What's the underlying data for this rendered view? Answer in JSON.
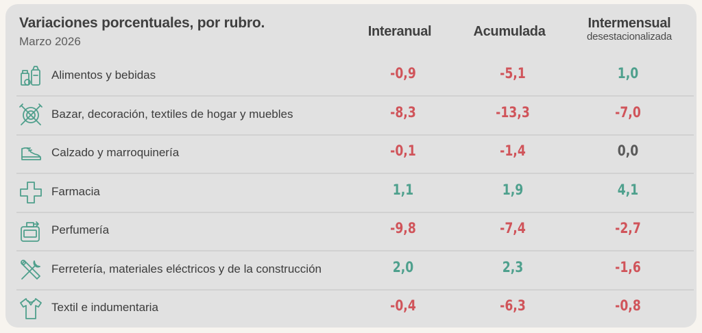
{
  "title": "Variaciones porcentuales, por rubro.",
  "subtitle": "Marzo 2026",
  "columns": {
    "interanual": "Interanual",
    "acumulada": "Acumulada",
    "intermensual": "Intermensual",
    "intermensual_sub": "desestacionalizada"
  },
  "colors": {
    "negative": "#d0545a",
    "positive": "#4ea08d",
    "zero": "#5a5a5a",
    "card": "#e1e1e1"
  },
  "rows": [
    {
      "label": "Alimentos y bebidas",
      "icon": "groceries-icon",
      "interanual": "-0,9",
      "acumulada": "-5,1",
      "intermensual": "1,0"
    },
    {
      "label": "Bazar, decoración, textiles de hogar y muebles",
      "icon": "plate-cutlery-icon",
      "interanual": "-8,3",
      "acumulada": "-13,3",
      "intermensual": "-7,0"
    },
    {
      "label": "Calzado y marroquinería",
      "icon": "sneaker-icon",
      "interanual": "-0,1",
      "acumulada": "-1,4",
      "intermensual": "0,0"
    },
    {
      "label": "Farmacia",
      "icon": "pharmacy-cross-icon",
      "interanual": "1,1",
      "acumulada": "1,9",
      "intermensual": "4,1"
    },
    {
      "label": "Perfumería",
      "icon": "perfume-bottle-icon",
      "interanual": "-9,8",
      "acumulada": "-7,4",
      "intermensual": "-2,7"
    },
    {
      "label": "Ferretería, materiales eléctricos y de la construcción",
      "icon": "tools-icon",
      "interanual": "2,0",
      "acumulada": "2,3",
      "intermensual": "-1,6"
    },
    {
      "label": "Textil e indumentaria",
      "icon": "shirt-icon",
      "interanual": "-0,4",
      "acumulada": "-6,3",
      "intermensual": "-0,8"
    }
  ],
  "chart_data": {
    "type": "table",
    "title": "Variaciones porcentuales, por rubro.",
    "subtitle": "Marzo 2026",
    "columns": [
      "Interanual",
      "Acumulada",
      "Intermensual desestacionalizada"
    ],
    "categories": [
      "Alimentos y bebidas",
      "Bazar, decoración, textiles de hogar y muebles",
      "Calzado y marroquinería",
      "Farmacia",
      "Perfumería",
      "Ferretería, materiales eléctricos y de la construcción",
      "Textil e indumentaria"
    ],
    "series": [
      {
        "name": "Interanual",
        "values": [
          -0.9,
          -8.3,
          -0.1,
          1.1,
          -9.8,
          2.0,
          -0.4
        ]
      },
      {
        "name": "Acumulada",
        "values": [
          -5.1,
          -13.3,
          -1.4,
          1.9,
          -7.4,
          2.3,
          -6.3
        ]
      },
      {
        "name": "Intermensual desestacionalizada",
        "values": [
          1.0,
          -7.0,
          0.0,
          4.1,
          -2.7,
          -1.6,
          -0.8
        ]
      }
    ]
  }
}
